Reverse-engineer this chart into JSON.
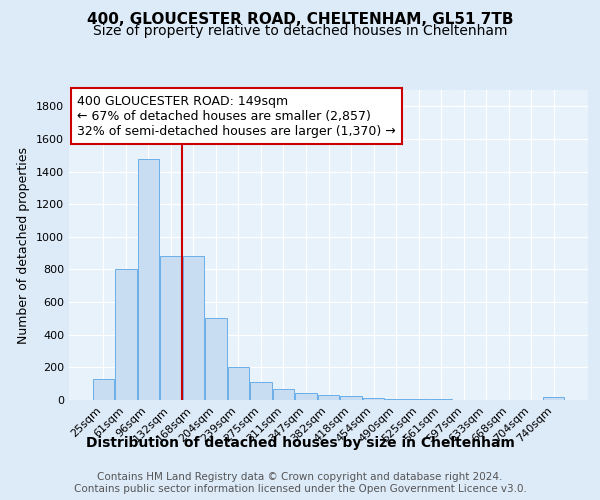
{
  "title": "400, GLOUCESTER ROAD, CHELTENHAM, GL51 7TB",
  "subtitle": "Size of property relative to detached houses in Cheltenham",
  "xlabel": "Distribution of detached houses by size in Cheltenham",
  "ylabel": "Number of detached properties",
  "bar_labels": [
    "25sqm",
    "61sqm",
    "96sqm",
    "132sqm",
    "168sqm",
    "204sqm",
    "239sqm",
    "275sqm",
    "311sqm",
    "347sqm",
    "382sqm",
    "418sqm",
    "454sqm",
    "490sqm",
    "525sqm",
    "561sqm",
    "597sqm",
    "633sqm",
    "668sqm",
    "704sqm",
    "740sqm"
  ],
  "bar_values": [
    130,
    800,
    1480,
    880,
    880,
    500,
    205,
    110,
    70,
    45,
    30,
    25,
    10,
    5,
    5,
    5,
    2,
    0,
    0,
    0,
    18
  ],
  "bar_color": "#c9ddf2",
  "bar_edge_color": "#6aaee8",
  "bg_color": "#ddeaf8",
  "plot_bg_color": "#e8f2fb",
  "red_line_x": 3.5,
  "annotation_text": "400 GLOUCESTER ROAD: 149sqm\n← 67% of detached houses are smaller (2,857)\n32% of semi-detached houses are larger (1,370) →",
  "annotation_box_color": "#ffffff",
  "annotation_box_edge": "#cc0000",
  "ylim": [
    0,
    1900
  ],
  "yticks": [
    0,
    200,
    400,
    600,
    800,
    1000,
    1200,
    1400,
    1600,
    1800
  ],
  "footer_text": "Contains HM Land Registry data © Crown copyright and database right 2024.\nContains public sector information licensed under the Open Government Licence v3.0.",
  "title_fontsize": 11,
  "subtitle_fontsize": 10,
  "xlabel_fontsize": 10,
  "ylabel_fontsize": 9,
  "tick_fontsize": 8,
  "annotation_fontsize": 9,
  "footer_fontsize": 7.5
}
